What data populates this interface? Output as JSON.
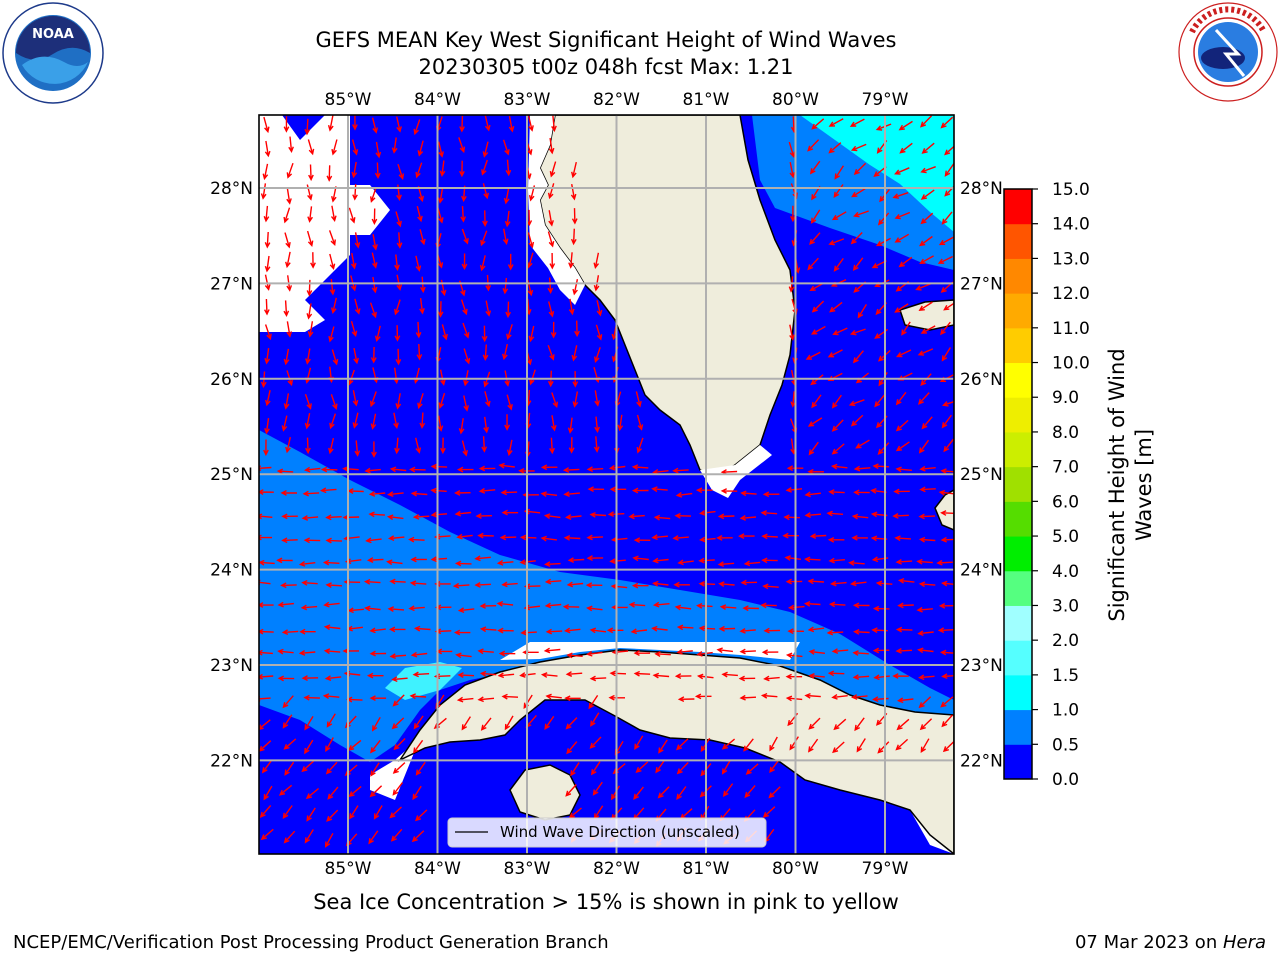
{
  "header": {
    "title_line1": "GEFS MEAN Key West Significant Height of Wind Waves",
    "title_line2": "20230305 t00z 048h fcst   Max: 1.21"
  },
  "logos": {
    "left": {
      "name": "noaa-logo",
      "text": "NOAA",
      "ring_text": "NATIONAL OCEANIC AND ATMOSPHERIC ADMINISTRATION · U.S. DEPARTMENT OF COMMERCE"
    },
    "right": {
      "name": "nws-logo",
      "ring_text": "NATIONAL WEATHER SERVICE"
    }
  },
  "map": {
    "longitude_labels": [
      "85°W",
      "84°W",
      "83°W",
      "82°W",
      "81°W",
      "80°W",
      "79°W"
    ],
    "latitude_labels": [
      "28°N",
      "27°N",
      "26°N",
      "25°N",
      "24°N",
      "23°N",
      "22°N"
    ],
    "longitude_values": [
      -85,
      -84,
      -83,
      -82,
      -81,
      -80,
      -79
    ],
    "latitude_values": [
      28,
      27,
      26,
      25,
      24,
      23,
      22
    ],
    "legend_label": "Wind Wave Direction (unscaled)",
    "colors": {
      "land": "#efeddc",
      "ocean_0_0.5": "#0000ff",
      "ocean_0.5_1.0": "#0080ff",
      "ocean_1.0_1.5": "#00ffff",
      "arrow": "#ff0000",
      "grid": "#b0b0b0"
    }
  },
  "colorbar": {
    "label": "Significant Height of Wind Waves [m]",
    "ticks": [
      "0.0",
      "0.5",
      "1.0",
      "1.5",
      "2.0",
      "3.0",
      "4.0",
      "5.0",
      "6.0",
      "7.0",
      "8.0",
      "9.0",
      "10.0",
      "11.0",
      "12.0",
      "13.0",
      "14.0",
      "15.0"
    ],
    "colors": [
      "#0000ff",
      "#0080ff",
      "#00ffff",
      "#55ffff",
      "#a0ffff",
      "#55ff80",
      "#00ee00",
      "#55dd00",
      "#a0e000",
      "#ccee00",
      "#eeee00",
      "#ffff00",
      "#ffcc00",
      "#ffaa00",
      "#ff8800",
      "#ff5500",
      "#ff0000"
    ]
  },
  "caption": "Sea Ice Concentration > 15% is shown in pink to yellow",
  "footer": {
    "left": "NCEP/EMC/Verification Post Processing Product Generation Branch",
    "right_date": "07 Mar 2023 on ",
    "right_host": "Hera"
  }
}
